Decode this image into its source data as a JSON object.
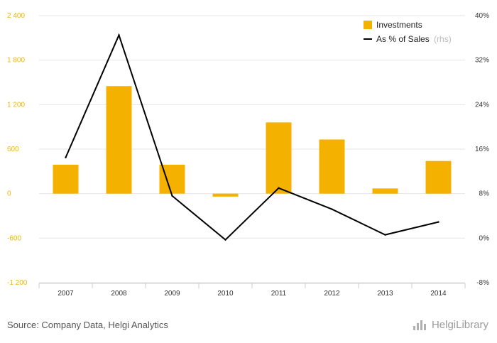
{
  "chart_data": {
    "type": "bar",
    "categories": [
      "2007",
      "2008",
      "2009",
      "2010",
      "2011",
      "2012",
      "2013",
      "2014"
    ],
    "series": [
      {
        "name": "Investments",
        "type": "bar",
        "axis": "left",
        "color": "#f5b100",
        "values": [
          390,
          1450,
          390,
          -40,
          960,
          730,
          70,
          440
        ]
      },
      {
        "name": "As % of Sales",
        "type": "line",
        "axis": "right",
        "color": "#000000",
        "values": [
          14.5,
          36.5,
          7.6,
          -0.3,
          9.0,
          5.2,
          0.6,
          2.9
        ]
      }
    ],
    "yleft": {
      "lim": [
        -1200,
        2400
      ],
      "ticks": [
        -1200,
        -600,
        0,
        600,
        1200,
        1800,
        2400
      ],
      "tick_labels": [
        "-1 200",
        "-600",
        "0",
        "600",
        "1 200",
        "1 800",
        "2 400"
      ]
    },
    "yright": {
      "lim": [
        -8,
        40
      ],
      "ticks": [
        -8,
        0,
        8,
        16,
        24,
        32,
        40
      ],
      "tick_labels": [
        "-8%",
        "0%",
        "8%",
        "16%",
        "24%",
        "32%",
        "40%"
      ]
    },
    "legend": {
      "position": "top-right",
      "items": [
        {
          "label": "Investments",
          "suffix": ""
        },
        {
          "label": "As % of Sales",
          "suffix": "(rhs)"
        }
      ]
    },
    "grid": true
  },
  "footer": {
    "source": "Source: Company Data, Helgi Analytics",
    "logo": "HelgiLibrary"
  }
}
